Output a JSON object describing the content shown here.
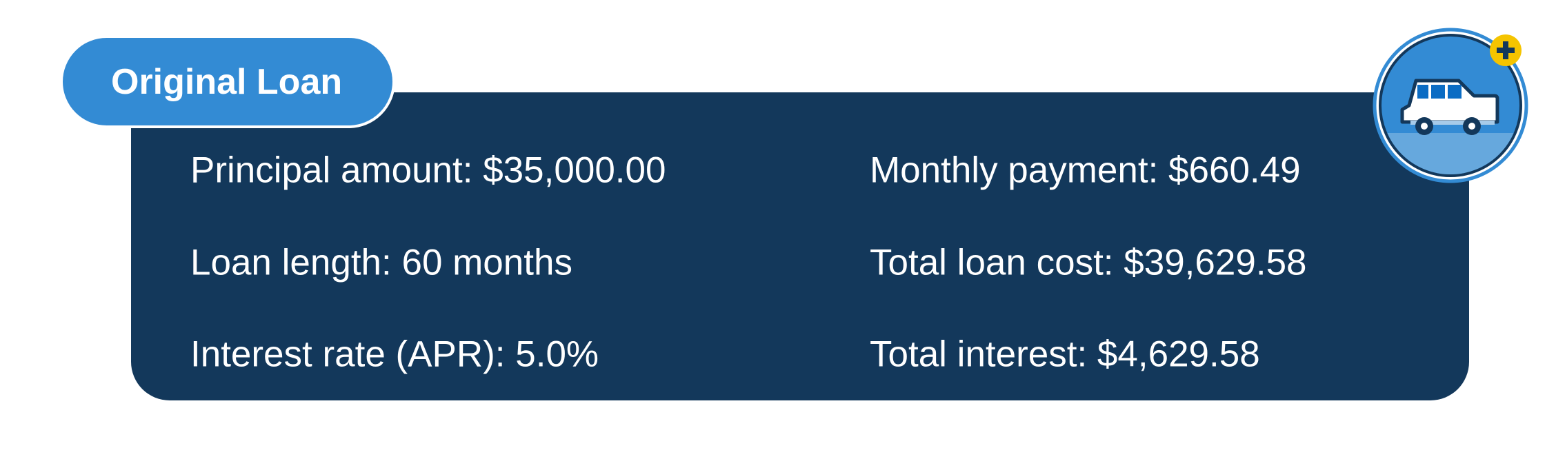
{
  "label": "Original Loan",
  "left_column": [
    "Principal amount: $35,000.00",
    "Loan length: 60 months",
    "Interest rate (APR): 5.0%"
  ],
  "right_column": [
    "Monthly payment: $660.49",
    "Total loan cost: $39,629.58",
    "Total interest: $4,629.58"
  ],
  "icon": "car-with-plus-badge-icon",
  "colors": {
    "panel": "#13385b",
    "accent": "#338bd4",
    "badge": "#f5c400"
  }
}
